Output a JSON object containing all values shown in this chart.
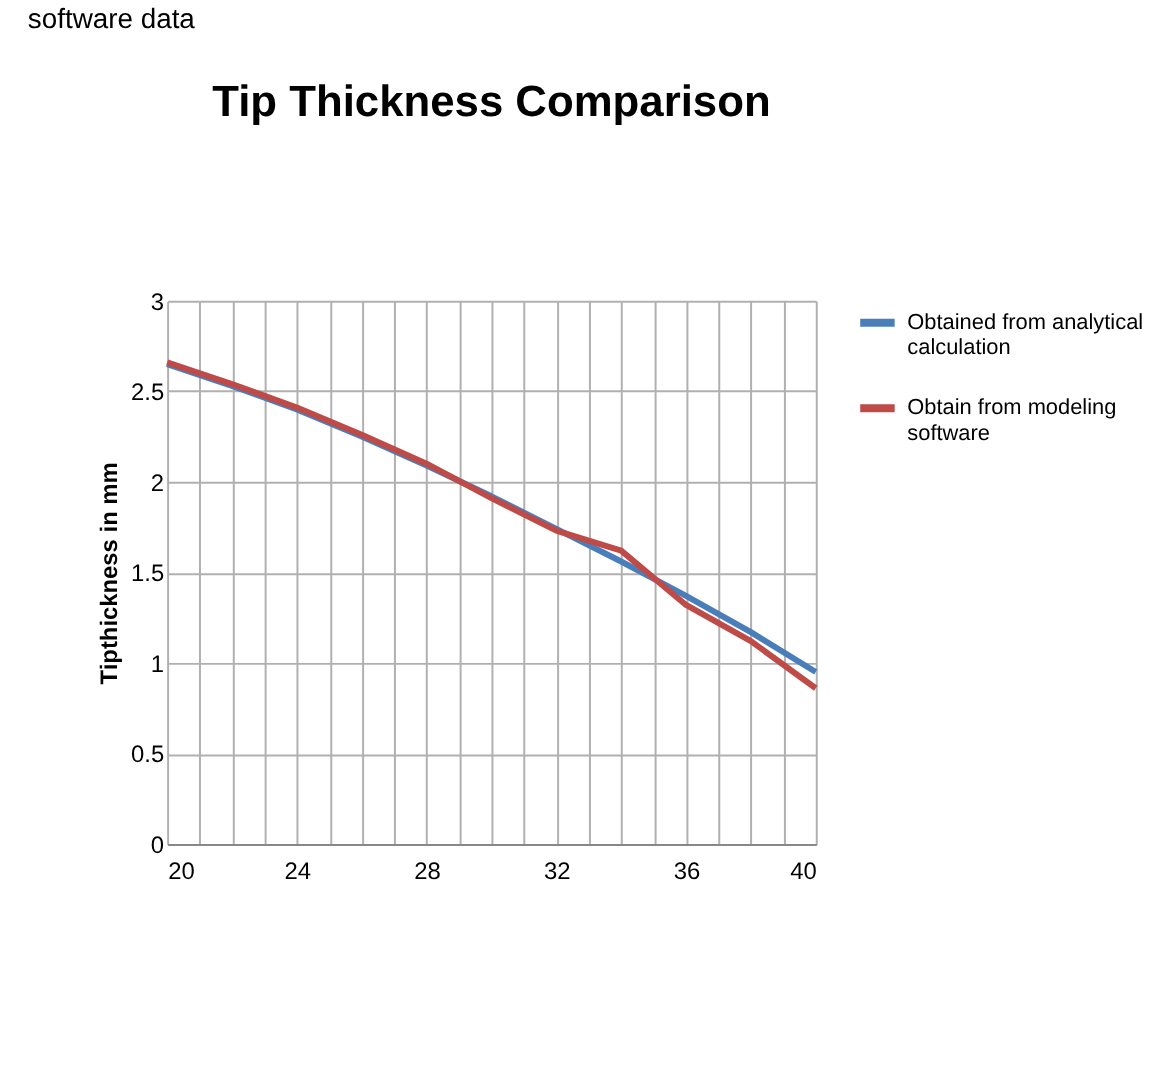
{
  "chart_data": {
    "type": "line",
    "title": "Tip Thickness Comparison",
    "ylabel": "Tipthickness in mm",
    "annotations": [
      "software data"
    ],
    "x": [
      20,
      22,
      24,
      26,
      28,
      30,
      32,
      34,
      36,
      38,
      40
    ],
    "series": [
      {
        "name": "Obtained from analytical calculation",
        "color": "#4a7ebb",
        "values": [
          2.65,
          2.53,
          2.4,
          2.25,
          2.09,
          1.92,
          1.74,
          1.56,
          1.37,
          1.17,
          0.95
        ]
      },
      {
        "name": "Obtain from modeling software",
        "color": "#be4b48",
        "values": [
          2.66,
          2.54,
          2.41,
          2.26,
          2.1,
          1.91,
          1.73,
          1.62,
          1.32,
          1.12,
          0.86
        ]
      }
    ],
    "xlim": [
      20,
      40
    ],
    "xticks": [
      20,
      {
        "value": 21,
        "label": null
      },
      {
        "value": 22,
        "label": null
      },
      {
        "value": 23,
        "label": null
      },
      24,
      {
        "value": 25,
        "label": null
      },
      {
        "value": 26,
        "label": null
      },
      {
        "value": 27,
        "label": null
      },
      28,
      {
        "value": 29,
        "label": null
      },
      {
        "value": 30,
        "label": null
      },
      {
        "value": 31,
        "label": null
      },
      32,
      {
        "value": 33,
        "label": null
      },
      {
        "value": 34,
        "label": null
      },
      {
        "value": 35,
        "label": null
      },
      36,
      {
        "value": 37,
        "label": null
      },
      {
        "value": 38,
        "label": null
      },
      {
        "value": 39,
        "label": null
      },
      40
    ],
    "ylim": [
      0,
      3
    ],
    "yticks": [
      0,
      0.5,
      1,
      1.5,
      2,
      2.5,
      3
    ],
    "grid": true,
    "legend": "right",
    "marker": "none",
    "line_style": "solid"
  }
}
